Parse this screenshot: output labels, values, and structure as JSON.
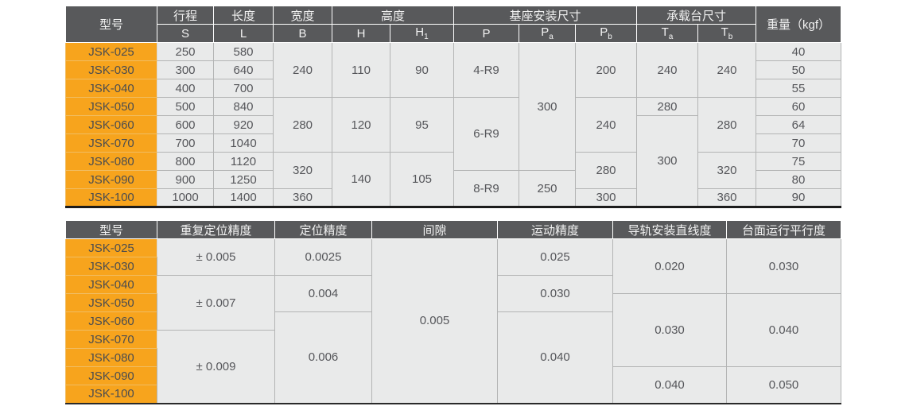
{
  "colors": {
    "header_bg": "#58595b",
    "header_text": "#f2f2f2",
    "model_bg": "#f7a41d",
    "model_text": "#4c4d4f",
    "cell_bg": "#e9eaea",
    "cell_text": "#55565a",
    "grid_line": "#b3b4b4",
    "table_bottom_line": "#1c1c1c"
  },
  "table1": {
    "title": "dimensions-table",
    "header_rows": [
      [
        {
          "t": "型号",
          "rowspan": 2
        },
        {
          "t": "行程"
        },
        {
          "t": "长度"
        },
        {
          "t": "宽度"
        },
        {
          "t": "高度",
          "colspan": 2
        },
        {
          "t": "基座安装尺寸",
          "colspan": 3
        },
        {
          "t": "承载台尺寸",
          "colspan": 2
        },
        {
          "t": "重量（kgf）",
          "rowspan": 2
        }
      ],
      [
        {
          "t": "S"
        },
        {
          "t": "L"
        },
        {
          "t": "B"
        },
        {
          "t": "H"
        },
        {
          "t": "H",
          "sub": "1"
        },
        {
          "t": "P"
        },
        {
          "t": "P",
          "sub": "a"
        },
        {
          "t": "P",
          "sub": "b"
        },
        {
          "t": "T",
          "sub": "a"
        },
        {
          "t": "T",
          "sub": "b"
        }
      ]
    ],
    "rows": [
      [
        {
          "t": "JSK-025",
          "m": 1
        },
        {
          "t": "250"
        },
        {
          "t": "580"
        },
        {
          "t": "240",
          "rs": 3
        },
        {
          "t": "110",
          "rs": 3
        },
        {
          "t": "90",
          "rs": 3
        },
        {
          "t": "4-R9",
          "rs": 3
        },
        {
          "t": "300",
          "rs": 7
        },
        {
          "t": "200",
          "rs": 3
        },
        {
          "t": "240",
          "rs": 3
        },
        {
          "t": "240",
          "rs": 3
        },
        {
          "t": "40"
        }
      ],
      [
        {
          "t": "JSK-030",
          "m": 1
        },
        {
          "t": "300"
        },
        {
          "t": "640"
        },
        {
          "t": "50"
        }
      ],
      [
        {
          "t": "JSK-040",
          "m": 1
        },
        {
          "t": "400"
        },
        {
          "t": "700"
        },
        {
          "t": "55"
        }
      ],
      [
        {
          "t": "JSK-050",
          "m": 1
        },
        {
          "t": "500"
        },
        {
          "t": "840"
        },
        {
          "t": "280",
          "rs": 3
        },
        {
          "t": "120",
          "rs": 3
        },
        {
          "t": "95",
          "rs": 3
        },
        {
          "t": "6-R9",
          "rs": 4
        },
        {
          "t": "240",
          "rs": 3
        },
        {
          "t": "280"
        },
        {
          "t": "280",
          "rs": 3
        },
        {
          "t": "60"
        }
      ],
      [
        {
          "t": "JSK-060",
          "m": 1
        },
        {
          "t": "600"
        },
        {
          "t": "920"
        },
        {
          "t": "300",
          "rs": 5
        },
        {
          "t": "64"
        }
      ],
      [
        {
          "t": "JSK-070",
          "m": 1
        },
        {
          "t": "700"
        },
        {
          "t": "1040"
        },
        {
          "t": "70"
        }
      ],
      [
        {
          "t": "JSK-080",
          "m": 1
        },
        {
          "t": "800"
        },
        {
          "t": "1120"
        },
        {
          "t": "320",
          "rs": 2
        },
        {
          "t": "140",
          "rs": 3
        },
        {
          "t": "105",
          "rs": 3
        },
        {
          "t": "280",
          "rs": 2
        },
        {
          "t": "320",
          "rs": 2
        },
        {
          "t": "75"
        }
      ],
      [
        {
          "t": "JSK-090",
          "m": 1
        },
        {
          "t": "900"
        },
        {
          "t": "1250"
        },
        {
          "t": "8-R9",
          "rs": 2
        },
        {
          "t": "250",
          "rs": 2
        },
        {
          "t": "80"
        }
      ],
      [
        {
          "t": "JSK-100",
          "m": 1
        },
        {
          "t": "1000"
        },
        {
          "t": "1400"
        },
        {
          "t": "360"
        },
        {
          "t": "300"
        },
        {
          "t": "360"
        },
        {
          "t": "90"
        }
      ]
    ]
  },
  "table2": {
    "title": "precision-table",
    "header_rows": [
      [
        {
          "t": "型号"
        },
        {
          "t": "重复定位精度"
        },
        {
          "t": "定位精度"
        },
        {
          "t": "间隙"
        },
        {
          "t": "运动精度"
        },
        {
          "t": "导轨安装直线度"
        },
        {
          "t": "台面运行平行度"
        }
      ]
    ],
    "rows": [
      [
        {
          "t": "JSK-025",
          "m": 1
        },
        {
          "t": "± 0.005",
          "rs": 2
        },
        {
          "t": "0.0025",
          "rs": 2
        },
        {
          "t": "0.005",
          "rs": 9
        },
        {
          "t": "0.025",
          "rs": 2
        },
        {
          "t": "0.020",
          "rs": 3
        },
        {
          "t": "0.030",
          "rs": 3
        }
      ],
      [
        {
          "t": "JSK-030",
          "m": 1
        }
      ],
      [
        {
          "t": "JSK-040",
          "m": 1
        },
        {
          "t": "± 0.007",
          "rs": 3
        },
        {
          "t": "0.004",
          "rs": 2
        },
        {
          "t": "0.030",
          "rs": 2
        }
      ],
      [
        {
          "t": "JSK-050",
          "m": 1
        },
        {
          "t": "0.030",
          "rs": 4
        },
        {
          "t": "0.040",
          "rs": 4
        }
      ],
      [
        {
          "t": "JSK-060",
          "m": 1
        },
        {
          "t": "0.006",
          "rs": 5
        },
        {
          "t": "0.040",
          "rs": 5
        }
      ],
      [
        {
          "t": "JSK-070",
          "m": 1
        },
        {
          "t": "± 0.009",
          "rs": 4
        }
      ],
      [
        {
          "t": "JSK-080",
          "m": 1
        }
      ],
      [
        {
          "t": "JSK-090",
          "m": 1
        },
        {
          "t": "0.040",
          "rs": 2
        },
        {
          "t": "0.050",
          "rs": 2
        }
      ],
      [
        {
          "t": "JSK-100",
          "m": 1
        }
      ]
    ]
  }
}
